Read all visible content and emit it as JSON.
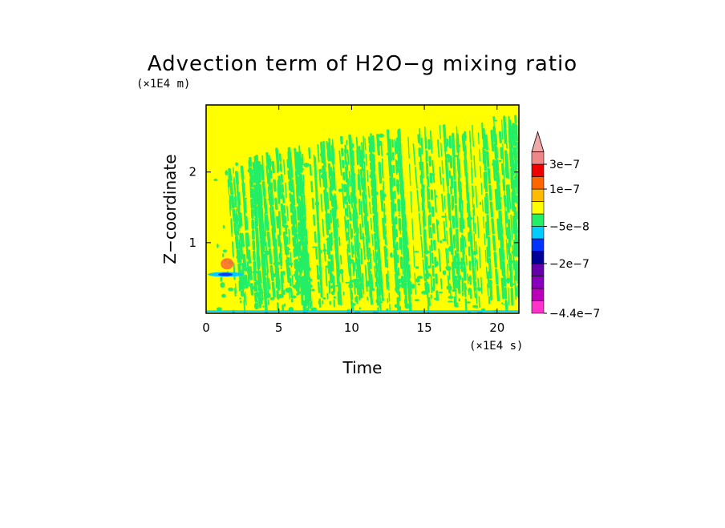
{
  "chart_data": {
    "type": "heatmap",
    "title": "Advection term of H2O−g mixing ratio",
    "xlabel": "Time",
    "ylabel": "Z−coordinate",
    "x_units": "(×1E4 s)",
    "y_units": "(×1E4 m)",
    "xlim": [
      0,
      21.5
    ],
    "ylim": [
      0,
      2.95
    ],
    "x_ticks": [
      {
        "value": 0,
        "label": "0"
      },
      {
        "value": 5,
        "label": "5"
      },
      {
        "value": 10,
        "label": "10"
      },
      {
        "value": 15,
        "label": "15"
      },
      {
        "value": 20,
        "label": "20"
      }
    ],
    "y_ticks": [
      {
        "value": 1,
        "label": "1"
      },
      {
        "value": 2,
        "label": "2"
      }
    ],
    "background_color": "#ffff00",
    "pattern_color": "#22ee66",
    "features": [
      {
        "name": "streak-band",
        "x_start": 1.5,
        "x_end": 21.5,
        "z_top_start": 2.0,
        "z_top_end": 2.8
      },
      {
        "name": "low-level-cyan-blue",
        "x": 1.0,
        "z": 0.55,
        "color": "#00ccff"
      },
      {
        "name": "low-level-red",
        "x": 1.0,
        "z": 0.7,
        "color": "#ff6633"
      }
    ],
    "colorbar": {
      "levels": [
        {
          "color": "#ff33cc"
        },
        {
          "color": "#bb00bb"
        },
        {
          "color": "#8800bb"
        },
        {
          "color": "#6600aa"
        },
        {
          "color": "#000099"
        },
        {
          "color": "#0033ff"
        },
        {
          "color": "#00ccff"
        },
        {
          "color": "#22ee66"
        },
        {
          "color": "#ffff00"
        },
        {
          "color": "#ffbb00"
        },
        {
          "color": "#ff6600"
        },
        {
          "color": "#ee0000"
        },
        {
          "color": "#ee8888"
        }
      ],
      "tip_color": "#f0a8a8",
      "labels": [
        {
          "label": "3e−7",
          "level": 12
        },
        {
          "label": "1e−7",
          "level": 10
        },
        {
          "label": "−5e−8",
          "level": 7
        },
        {
          "label": "−2e−7",
          "level": 4
        },
        {
          "label": "−4.4e−7",
          "level": 0
        }
      ]
    }
  }
}
